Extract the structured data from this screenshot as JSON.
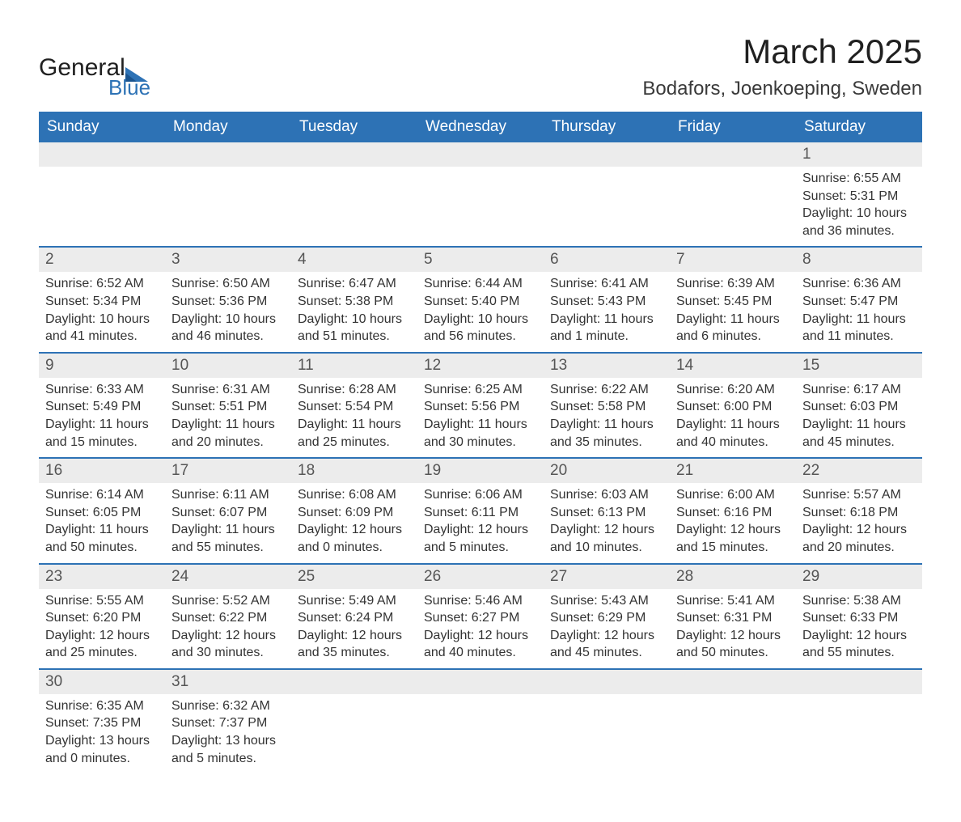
{
  "logo": {
    "word1": "General",
    "word2": "Blue",
    "brand_color": "#2d72b5",
    "text_color": "#202020"
  },
  "title": "March 2025",
  "subtitle": "Bodafors, Joenkoeping, Sweden",
  "colors": {
    "header_bg": "#2d72b5",
    "header_text": "#ffffff",
    "daynum_bg": "#ececec",
    "daynum_text": "#555555",
    "body_text": "#333333",
    "row_divider": "#2d72b5",
    "page_bg": "#ffffff"
  },
  "typography": {
    "title_fontsize": 42,
    "subtitle_fontsize": 24,
    "dow_fontsize": 19,
    "daynum_fontsize": 19,
    "info_fontsize": 16,
    "font_family": "Arial"
  },
  "layout": {
    "columns": 7,
    "rows": 6,
    "start_day_index": 6
  },
  "days_of_week": [
    "Sunday",
    "Monday",
    "Tuesday",
    "Wednesday",
    "Thursday",
    "Friday",
    "Saturday"
  ],
  "days": [
    {
      "n": "1",
      "sunrise": "Sunrise: 6:55 AM",
      "sunset": "Sunset: 5:31 PM",
      "daylight": "Daylight: 10 hours and 36 minutes."
    },
    {
      "n": "2",
      "sunrise": "Sunrise: 6:52 AM",
      "sunset": "Sunset: 5:34 PM",
      "daylight": "Daylight: 10 hours and 41 minutes."
    },
    {
      "n": "3",
      "sunrise": "Sunrise: 6:50 AM",
      "sunset": "Sunset: 5:36 PM",
      "daylight": "Daylight: 10 hours and 46 minutes."
    },
    {
      "n": "4",
      "sunrise": "Sunrise: 6:47 AM",
      "sunset": "Sunset: 5:38 PM",
      "daylight": "Daylight: 10 hours and 51 minutes."
    },
    {
      "n": "5",
      "sunrise": "Sunrise: 6:44 AM",
      "sunset": "Sunset: 5:40 PM",
      "daylight": "Daylight: 10 hours and 56 minutes."
    },
    {
      "n": "6",
      "sunrise": "Sunrise: 6:41 AM",
      "sunset": "Sunset: 5:43 PM",
      "daylight": "Daylight: 11 hours and 1 minute."
    },
    {
      "n": "7",
      "sunrise": "Sunrise: 6:39 AM",
      "sunset": "Sunset: 5:45 PM",
      "daylight": "Daylight: 11 hours and 6 minutes."
    },
    {
      "n": "8",
      "sunrise": "Sunrise: 6:36 AM",
      "sunset": "Sunset: 5:47 PM",
      "daylight": "Daylight: 11 hours and 11 minutes."
    },
    {
      "n": "9",
      "sunrise": "Sunrise: 6:33 AM",
      "sunset": "Sunset: 5:49 PM",
      "daylight": "Daylight: 11 hours and 15 minutes."
    },
    {
      "n": "10",
      "sunrise": "Sunrise: 6:31 AM",
      "sunset": "Sunset: 5:51 PM",
      "daylight": "Daylight: 11 hours and 20 minutes."
    },
    {
      "n": "11",
      "sunrise": "Sunrise: 6:28 AM",
      "sunset": "Sunset: 5:54 PM",
      "daylight": "Daylight: 11 hours and 25 minutes."
    },
    {
      "n": "12",
      "sunrise": "Sunrise: 6:25 AM",
      "sunset": "Sunset: 5:56 PM",
      "daylight": "Daylight: 11 hours and 30 minutes."
    },
    {
      "n": "13",
      "sunrise": "Sunrise: 6:22 AM",
      "sunset": "Sunset: 5:58 PM",
      "daylight": "Daylight: 11 hours and 35 minutes."
    },
    {
      "n": "14",
      "sunrise": "Sunrise: 6:20 AM",
      "sunset": "Sunset: 6:00 PM",
      "daylight": "Daylight: 11 hours and 40 minutes."
    },
    {
      "n": "15",
      "sunrise": "Sunrise: 6:17 AM",
      "sunset": "Sunset: 6:03 PM",
      "daylight": "Daylight: 11 hours and 45 minutes."
    },
    {
      "n": "16",
      "sunrise": "Sunrise: 6:14 AM",
      "sunset": "Sunset: 6:05 PM",
      "daylight": "Daylight: 11 hours and 50 minutes."
    },
    {
      "n": "17",
      "sunrise": "Sunrise: 6:11 AM",
      "sunset": "Sunset: 6:07 PM",
      "daylight": "Daylight: 11 hours and 55 minutes."
    },
    {
      "n": "18",
      "sunrise": "Sunrise: 6:08 AM",
      "sunset": "Sunset: 6:09 PM",
      "daylight": "Daylight: 12 hours and 0 minutes."
    },
    {
      "n": "19",
      "sunrise": "Sunrise: 6:06 AM",
      "sunset": "Sunset: 6:11 PM",
      "daylight": "Daylight: 12 hours and 5 minutes."
    },
    {
      "n": "20",
      "sunrise": "Sunrise: 6:03 AM",
      "sunset": "Sunset: 6:13 PM",
      "daylight": "Daylight: 12 hours and 10 minutes."
    },
    {
      "n": "21",
      "sunrise": "Sunrise: 6:00 AM",
      "sunset": "Sunset: 6:16 PM",
      "daylight": "Daylight: 12 hours and 15 minutes."
    },
    {
      "n": "22",
      "sunrise": "Sunrise: 5:57 AM",
      "sunset": "Sunset: 6:18 PM",
      "daylight": "Daylight: 12 hours and 20 minutes."
    },
    {
      "n": "23",
      "sunrise": "Sunrise: 5:55 AM",
      "sunset": "Sunset: 6:20 PM",
      "daylight": "Daylight: 12 hours and 25 minutes."
    },
    {
      "n": "24",
      "sunrise": "Sunrise: 5:52 AM",
      "sunset": "Sunset: 6:22 PM",
      "daylight": "Daylight: 12 hours and 30 minutes."
    },
    {
      "n": "25",
      "sunrise": "Sunrise: 5:49 AM",
      "sunset": "Sunset: 6:24 PM",
      "daylight": "Daylight: 12 hours and 35 minutes."
    },
    {
      "n": "26",
      "sunrise": "Sunrise: 5:46 AM",
      "sunset": "Sunset: 6:27 PM",
      "daylight": "Daylight: 12 hours and 40 minutes."
    },
    {
      "n": "27",
      "sunrise": "Sunrise: 5:43 AM",
      "sunset": "Sunset: 6:29 PM",
      "daylight": "Daylight: 12 hours and 45 minutes."
    },
    {
      "n": "28",
      "sunrise": "Sunrise: 5:41 AM",
      "sunset": "Sunset: 6:31 PM",
      "daylight": "Daylight: 12 hours and 50 minutes."
    },
    {
      "n": "29",
      "sunrise": "Sunrise: 5:38 AM",
      "sunset": "Sunset: 6:33 PM",
      "daylight": "Daylight: 12 hours and 55 minutes."
    },
    {
      "n": "30",
      "sunrise": "Sunrise: 6:35 AM",
      "sunset": "Sunset: 7:35 PM",
      "daylight": "Daylight: 13 hours and 0 minutes."
    },
    {
      "n": "31",
      "sunrise": "Sunrise: 6:32 AM",
      "sunset": "Sunset: 7:37 PM",
      "daylight": "Daylight: 13 hours and 5 minutes."
    }
  ]
}
